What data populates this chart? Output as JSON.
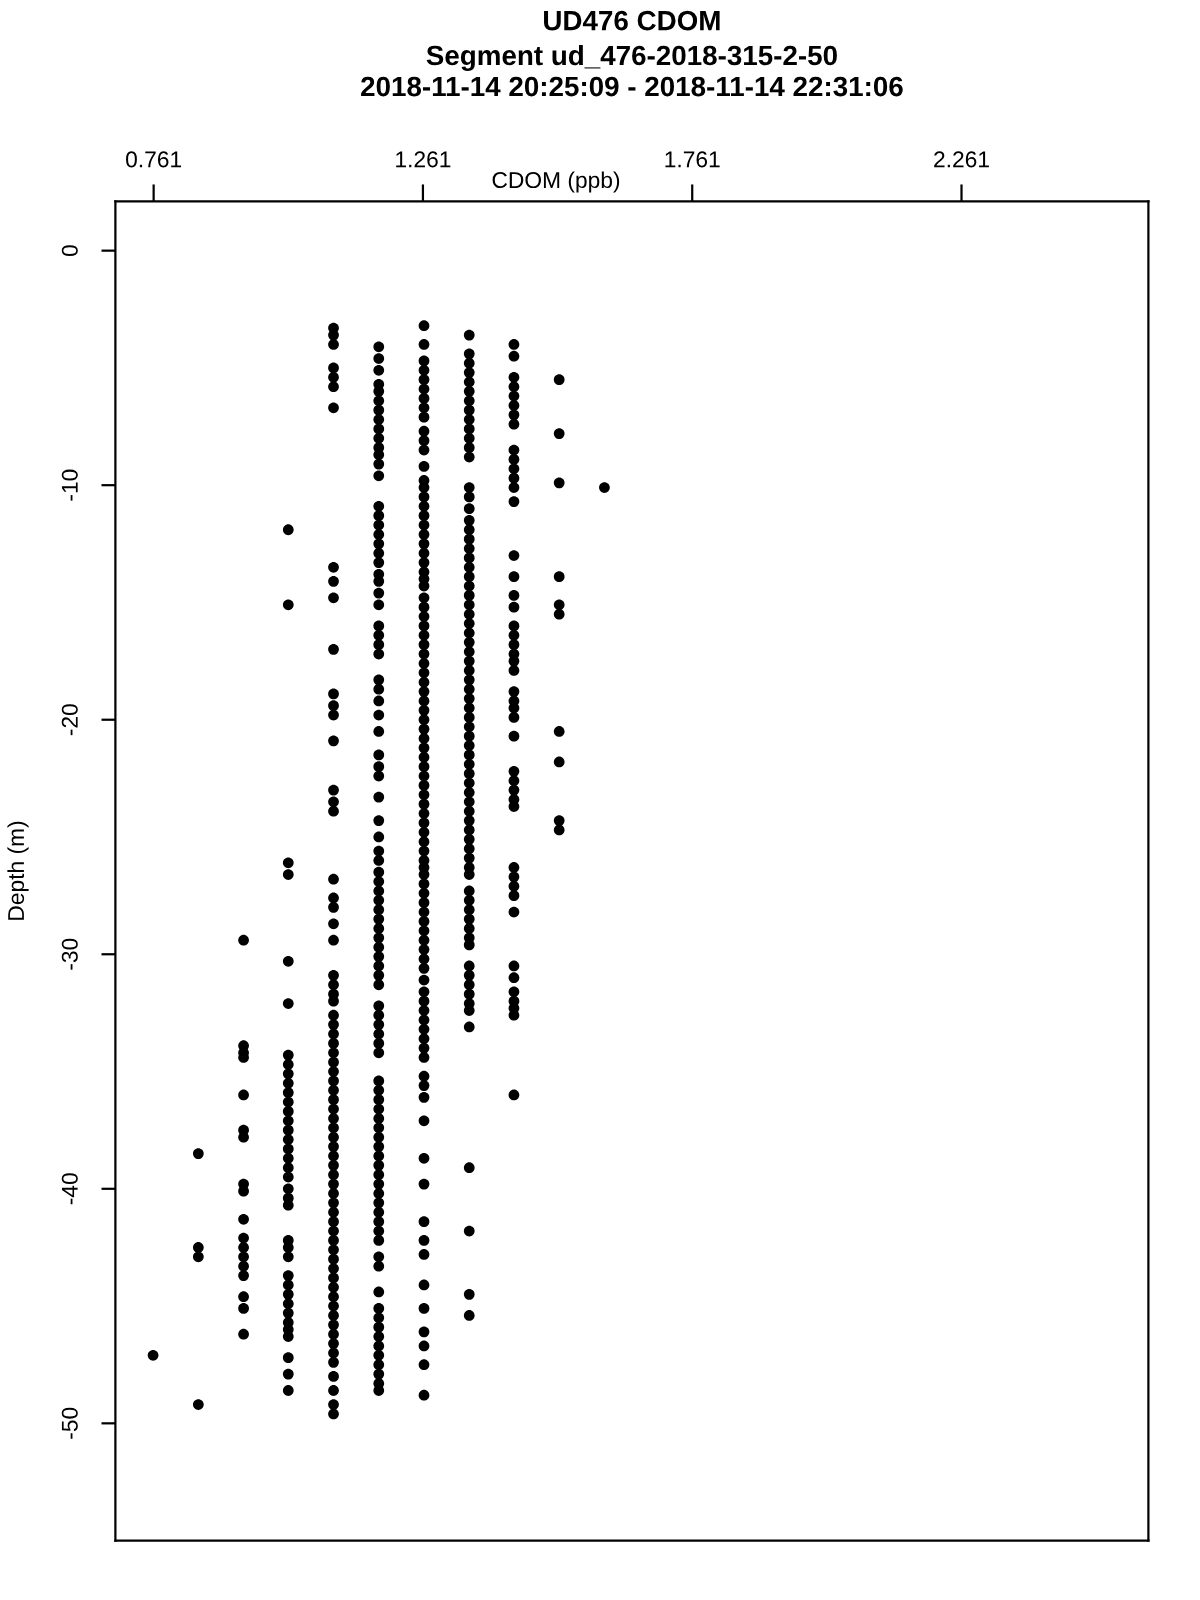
{
  "chart_data": {
    "type": "scatter",
    "title": "UD476 CDOM",
    "subtitle": "Segment ud_476-2018-315-2-50\n2018-11-14 20:25:09 - 2018-11-14 22:31:06",
    "xlabel": "CDOM (ppb)",
    "ylabel": "Depth (m)",
    "marker": "circle",
    "xlim": [
      0.69,
      2.608
    ],
    "xticks": [
      0.761,
      1.261,
      1.761,
      2.261
    ],
    "ylim": [
      -55.0,
      2.1
    ],
    "yticks": [
      0,
      -10,
      -20,
      -30,
      -40,
      -50
    ],
    "series": [
      {
        "color": "#000000",
        "x": [
          0.76
        ],
        "values": [
          -47.1
        ]
      },
      {
        "color": "#000000",
        "x": [
          0.844,
          0.844,
          0.844,
          0.844
        ],
        "values": [
          -38.5,
          -42.5,
          -42.9,
          -49.2
        ]
      },
      {
        "color": "#000000",
        "x": [
          0.928,
          0.928,
          0.928,
          0.928,
          0.928,
          0.928,
          0.928,
          0.928,
          0.928,
          0.928,
          0.928,
          0.928,
          0.928,
          0.928,
          0.928,
          0.928,
          0.928,
          0.928
        ],
        "values": [
          -29.4,
          -33.9,
          -34.2,
          -34.4,
          -36.0,
          -37.5,
          -37.8,
          -39.8,
          -40.1,
          -41.3,
          -42.1,
          -42.5,
          -42.9,
          -43.3,
          -43.7,
          -44.6,
          -45.1,
          -46.2
        ]
      },
      {
        "color": "#000000",
        "x": [
          1.011,
          1.011,
          1.011,
          1.011,
          1.011,
          1.011,
          1.011,
          1.011,
          1.011,
          1.011,
          1.011,
          1.011,
          1.011,
          1.011,
          1.011,
          1.011,
          1.011,
          1.011,
          1.011,
          1.011,
          1.011,
          1.011,
          1.011,
          1.011,
          1.011,
          1.011,
          1.011,
          1.011,
          1.011,
          1.011,
          1.011,
          1.011,
          1.011,
          1.011,
          1.011,
          1.011,
          1.011
        ],
        "values": [
          -11.9,
          -15.1,
          -26.1,
          -26.6,
          -30.3,
          -32.1,
          -34.3,
          -34.7,
          -35.1,
          -35.5,
          -35.9,
          -36.3,
          -36.7,
          -37.1,
          -37.5,
          -37.9,
          -38.3,
          -38.7,
          -39.1,
          -39.5,
          -40.0,
          -40.4,
          -40.7,
          -42.2,
          -42.5,
          -42.9,
          -43.7,
          -44.1,
          -44.5,
          -44.9,
          -45.3,
          -45.7,
          -46.0,
          -46.3,
          -47.2,
          -47.9,
          -48.6
        ]
      },
      {
        "color": "#000000",
        "x": [
          1.095,
          1.095,
          1.095,
          1.095,
          1.095,
          1.095,
          1.095,
          1.095,
          1.095,
          1.095,
          1.095,
          1.095,
          1.095,
          1.095,
          1.095,
          1.095,
          1.095,
          1.095,
          1.095,
          1.095,
          1.095,
          1.095,
          1.095,
          1.095,
          1.095,
          1.095,
          1.095,
          1.095,
          1.095,
          1.095,
          1.095,
          1.095,
          1.095,
          1.095,
          1.095,
          1.095,
          1.095,
          1.095,
          1.095,
          1.095,
          1.095,
          1.095,
          1.095,
          1.095,
          1.095,
          1.095,
          1.095,
          1.095,
          1.095,
          1.095,
          1.095,
          1.095,
          1.095,
          1.095,
          1.095,
          1.095,
          1.095,
          1.095,
          1.095,
          1.095,
          1.095,
          1.095,
          1.095,
          1.095,
          1.095,
          1.095,
          1.095,
          1.095,
          1.095
        ],
        "values": [
          -3.3,
          -3.6,
          -4.0,
          -5.0,
          -5.4,
          -5.8,
          -6.7,
          -13.5,
          -14.1,
          -14.8,
          -17.0,
          -18.9,
          -19.4,
          -19.8,
          -20.9,
          -23.0,
          -23.5,
          -23.9,
          -26.8,
          -27.6,
          -28.0,
          -28.7,
          -29.4,
          -30.9,
          -31.3,
          -31.7,
          -32.0,
          -32.6,
          -33.0,
          -33.4,
          -33.8,
          -34.2,
          -34.6,
          -35.0,
          -35.4,
          -35.8,
          -36.2,
          -36.6,
          -37.0,
          -37.4,
          -37.8,
          -38.2,
          -38.6,
          -39.0,
          -39.4,
          -39.8,
          -40.2,
          -40.6,
          -41.0,
          -41.4,
          -41.8,
          -42.2,
          -42.6,
          -43.0,
          -43.4,
          -43.8,
          -44.2,
          -44.6,
          -45.0,
          -45.4,
          -45.8,
          -46.2,
          -46.6,
          -47.0,
          -47.4,
          -48.0,
          -48.6,
          -49.2,
          -49.6
        ]
      },
      {
        "color": "#000000",
        "x": [
          1.179,
          1.179,
          1.179,
          1.179,
          1.179,
          1.179,
          1.179,
          1.179,
          1.179,
          1.179,
          1.179,
          1.179,
          1.179,
          1.179,
          1.179,
          1.179,
          1.179,
          1.179,
          1.179,
          1.179,
          1.179,
          1.179,
          1.179,
          1.179,
          1.179,
          1.179,
          1.179,
          1.179,
          1.179,
          1.179,
          1.179,
          1.179,
          1.179,
          1.179,
          1.179,
          1.179,
          1.179,
          1.179,
          1.179,
          1.179,
          1.179,
          1.179,
          1.179,
          1.179,
          1.179,
          1.179,
          1.179,
          1.179,
          1.179,
          1.179,
          1.179,
          1.179,
          1.179,
          1.179,
          1.179,
          1.179,
          1.179,
          1.179,
          1.179,
          1.179,
          1.179,
          1.179,
          1.179,
          1.179,
          1.179,
          1.179,
          1.179,
          1.179,
          1.179,
          1.179,
          1.179,
          1.179,
          1.179,
          1.179,
          1.179,
          1.179,
          1.179,
          1.179,
          1.179,
          1.179,
          1.179,
          1.179,
          1.179,
          1.179,
          1.179,
          1.179,
          1.179,
          1.179,
          1.179,
          1.179,
          1.179,
          1.179
        ],
        "values": [
          -4.1,
          -4.6,
          -5.1,
          -5.7,
          -6.0,
          -6.4,
          -6.8,
          -7.2,
          -7.6,
          -8.0,
          -8.4,
          -8.7,
          -9.1,
          -9.6,
          -10.9,
          -11.3,
          -11.7,
          -12.1,
          -12.5,
          -12.9,
          -13.3,
          -13.8,
          -14.1,
          -14.6,
          -15.1,
          -16.0,
          -16.4,
          -16.8,
          -17.2,
          -18.3,
          -18.7,
          -19.2,
          -19.8,
          -20.5,
          -21.5,
          -22.0,
          -22.4,
          -23.3,
          -24.3,
          -25.0,
          -25.6,
          -26.0,
          -26.5,
          -26.9,
          -27.3,
          -27.7,
          -28.1,
          -28.5,
          -28.9,
          -29.3,
          -29.7,
          -30.1,
          -30.5,
          -30.9,
          -31.3,
          -32.2,
          -32.6,
          -33.0,
          -33.4,
          -33.8,
          -34.2,
          -35.4,
          -35.8,
          -36.2,
          -36.6,
          -37.0,
          -37.4,
          -37.8,
          -38.2,
          -38.6,
          -39.0,
          -39.4,
          -39.8,
          -40.2,
          -40.6,
          -41.0,
          -41.4,
          -41.8,
          -42.2,
          -42.9,
          -43.3,
          -44.4,
          -45.1,
          -45.5,
          -45.9,
          -46.3,
          -46.7,
          -47.1,
          -47.5,
          -47.9,
          -48.3,
          -48.6
        ]
      },
      {
        "color": "#000000",
        "x": [
          1.263,
          1.263,
          1.263,
          1.263,
          1.263,
          1.263,
          1.263,
          1.263,
          1.263,
          1.263,
          1.263,
          1.263,
          1.263,
          1.263,
          1.263,
          1.263,
          1.263,
          1.263,
          1.263,
          1.263,
          1.263,
          1.263,
          1.263,
          1.263,
          1.263,
          1.263,
          1.263,
          1.263,
          1.263,
          1.263,
          1.263,
          1.263,
          1.263,
          1.263,
          1.263,
          1.263,
          1.263,
          1.263,
          1.263,
          1.263,
          1.263,
          1.263,
          1.263,
          1.263,
          1.263,
          1.263,
          1.263,
          1.263,
          1.263,
          1.263,
          1.263,
          1.263,
          1.263,
          1.263,
          1.263,
          1.263,
          1.263,
          1.263,
          1.263,
          1.263,
          1.263,
          1.263,
          1.263,
          1.263,
          1.263,
          1.263,
          1.263,
          1.263,
          1.263,
          1.263,
          1.263,
          1.263,
          1.263,
          1.263,
          1.263,
          1.263,
          1.263,
          1.263,
          1.263,
          1.263,
          1.263,
          1.263,
          1.263,
          1.263,
          1.263,
          1.263,
          1.263,
          1.263,
          1.263,
          1.263,
          1.263
        ],
        "values": [
          -3.2,
          -4.0,
          -4.7,
          -5.1,
          -5.5,
          -5.9,
          -6.3,
          -6.7,
          -7.1,
          -7.7,
          -8.1,
          -8.5,
          -9.2,
          -9.8,
          -10.1,
          -10.5,
          -10.9,
          -11.3,
          -11.7,
          -12.1,
          -12.5,
          -12.9,
          -13.3,
          -13.7,
          -14.0,
          -14.3,
          -14.8,
          -15.2,
          -15.6,
          -16.0,
          -16.4,
          -16.8,
          -17.2,
          -17.6,
          -18.0,
          -18.4,
          -18.8,
          -19.2,
          -19.6,
          -20.0,
          -20.4,
          -20.8,
          -21.2,
          -21.6,
          -22.0,
          -22.4,
          -22.8,
          -23.2,
          -23.6,
          -24.0,
          -24.4,
          -24.8,
          -25.2,
          -25.6,
          -26.0,
          -26.3,
          -26.6,
          -27.0,
          -27.4,
          -27.8,
          -28.2,
          -28.6,
          -29.0,
          -29.4,
          -29.8,
          -30.2,
          -30.6,
          -31.1,
          -31.6,
          -32.0,
          -32.4,
          -32.8,
          -33.2,
          -33.6,
          -34.0,
          -34.4,
          -35.2,
          -35.6,
          -36.1,
          -37.1,
          -38.7,
          -39.8,
          -41.4,
          -42.2,
          -42.8,
          -44.1,
          -45.1,
          -46.1,
          -46.7,
          -47.5,
          -48.8
        ]
      },
      {
        "color": "#000000",
        "x": [
          1.347,
          1.347,
          1.347,
          1.347,
          1.347,
          1.347,
          1.347,
          1.347,
          1.347,
          1.347,
          1.347,
          1.347,
          1.347,
          1.347,
          1.347,
          1.347,
          1.347,
          1.347,
          1.347,
          1.347,
          1.347,
          1.347,
          1.347,
          1.347,
          1.347,
          1.347,
          1.347,
          1.347,
          1.347,
          1.347,
          1.347,
          1.347,
          1.347,
          1.347,
          1.347,
          1.347,
          1.347,
          1.347,
          1.347,
          1.347,
          1.347,
          1.347,
          1.347,
          1.347,
          1.347,
          1.347,
          1.347,
          1.347,
          1.347,
          1.347,
          1.347,
          1.347,
          1.347,
          1.347,
          1.347,
          1.347,
          1.347,
          1.347,
          1.347,
          1.347,
          1.347,
          1.347,
          1.347,
          1.347,
          1.347,
          1.347,
          1.347,
          1.347,
          1.347,
          1.347,
          1.347,
          1.347,
          1.347
        ],
        "values": [
          -3.6,
          -4.4,
          -4.8,
          -5.2,
          -5.6,
          -6.0,
          -6.4,
          -6.8,
          -7.2,
          -7.6,
          -8.0,
          -8.4,
          -8.8,
          -10.1,
          -10.5,
          -11.0,
          -11.5,
          -11.9,
          -12.3,
          -12.7,
          -13.1,
          -13.5,
          -13.9,
          -14.3,
          -14.7,
          -15.1,
          -15.5,
          -15.9,
          -16.3,
          -16.7,
          -17.1,
          -17.5,
          -17.9,
          -18.3,
          -18.7,
          -19.1,
          -19.5,
          -19.9,
          -20.3,
          -20.7,
          -21.1,
          -21.5,
          -21.9,
          -22.3,
          -22.7,
          -23.1,
          -23.5,
          -23.9,
          -24.3,
          -24.7,
          -25.1,
          -25.5,
          -25.9,
          -26.3,
          -26.6,
          -27.3,
          -27.7,
          -28.1,
          -28.5,
          -28.9,
          -29.3,
          -29.6,
          -30.5,
          -30.9,
          -31.3,
          -31.7,
          -32.1,
          -32.4,
          -33.1,
          -39.1,
          -41.8,
          -44.5,
          -45.4
        ]
      },
      {
        "color": "#000000",
        "x": [
          1.43,
          1.43,
          1.43,
          1.43,
          1.43,
          1.43,
          1.43,
          1.43,
          1.43,
          1.43,
          1.43,
          1.43,
          1.43,
          1.43,
          1.43,
          1.43,
          1.43,
          1.43,
          1.43,
          1.43,
          1.43,
          1.43,
          1.43,
          1.43,
          1.43,
          1.43,
          1.43,
          1.43,
          1.43,
          1.43,
          1.43,
          1.43,
          1.43,
          1.43,
          1.43,
          1.43,
          1.43,
          1.43,
          1.43,
          1.43,
          1.43,
          1.43,
          1.43,
          1.43,
          1.43,
          1.43
        ],
        "values": [
          -4.0,
          -4.5,
          -5.4,
          -5.8,
          -6.2,
          -6.6,
          -7.0,
          -7.4,
          -8.5,
          -8.9,
          -9.3,
          -9.7,
          -10.1,
          -10.7,
          -13.0,
          -13.9,
          -14.7,
          -15.2,
          -16.0,
          -16.4,
          -16.8,
          -17.2,
          -17.5,
          -17.9,
          -18.8,
          -19.2,
          -19.5,
          -19.9,
          -20.7,
          -22.2,
          -22.6,
          -23.0,
          -23.4,
          -23.7,
          -26.3,
          -26.7,
          -27.1,
          -27.5,
          -28.2,
          -30.5,
          -31.0,
          -31.6,
          -32.0,
          -32.3,
          -32.6,
          -36.0
        ]
      },
      {
        "color": "#000000",
        "x": [
          1.514,
          1.514,
          1.514,
          1.514,
          1.514,
          1.514,
          1.514,
          1.514,
          1.514,
          1.514
        ],
        "values": [
          -5.5,
          -7.8,
          -9.9,
          -13.9,
          -15.1,
          -15.5,
          -20.5,
          -21.8,
          -24.3,
          -24.7
        ]
      },
      {
        "color": "#000000",
        "x": [
          1.598
        ],
        "values": [
          -10.1
        ]
      }
    ]
  }
}
